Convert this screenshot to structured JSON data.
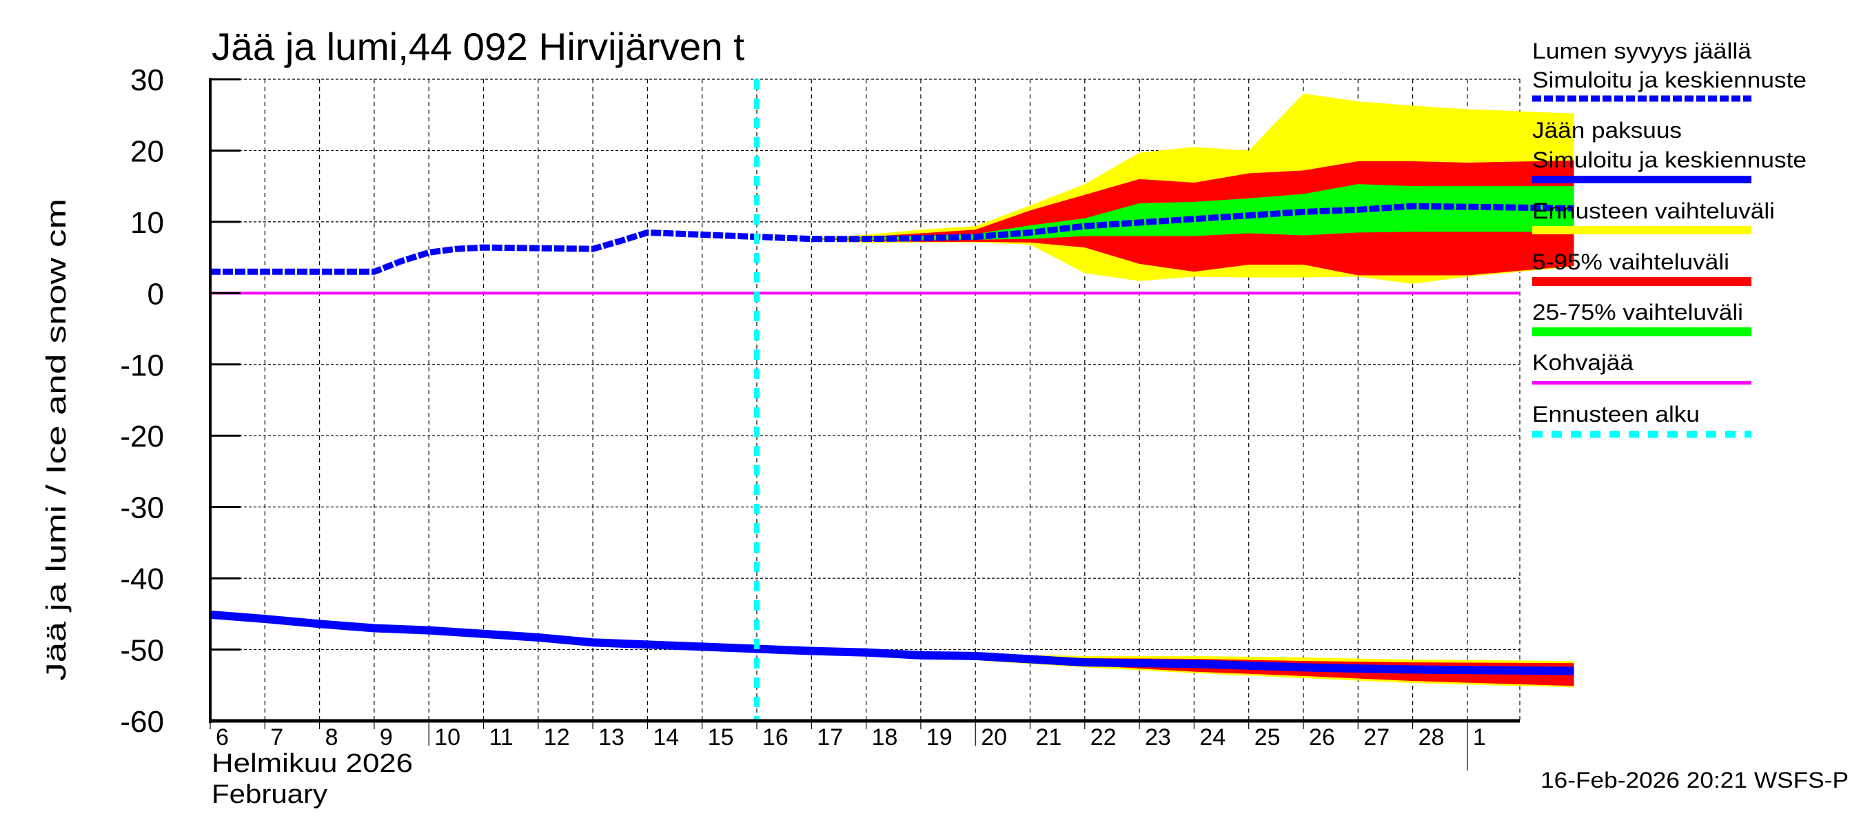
{
  "chart_data": {
    "type": "area",
    "title": "Jää ja lumi,44 092 Hirvijärven t",
    "ylabel": "Jää ja lumi / Ice and snow    cm",
    "xlabel_line1": "Helmikuu  2026",
    "xlabel_line2": "February",
    "timestamp": "16-Feb-2026 20:21 WSFS-P",
    "ylim": [
      -60,
      30
    ],
    "yticks": [
      30,
      20,
      10,
      0,
      -10,
      -20,
      -30,
      -40,
      -50,
      -60
    ],
    "x_range_days": [
      6,
      30.95
    ],
    "x_tick_days": [
      6,
      7,
      8,
      9,
      10,
      11,
      12,
      13,
      14,
      15,
      16,
      17,
      18,
      19,
      20,
      21,
      22,
      23,
      24,
      25,
      26,
      27,
      28,
      29
    ],
    "x_tick_labels": [
      "6",
      "7",
      "8",
      "9",
      "10",
      "11",
      "12",
      "13",
      "14",
      "15",
      "16",
      "17",
      "18",
      "19",
      "20",
      "21",
      "22",
      "23",
      "24",
      "25",
      "26",
      "27",
      "28",
      "1"
    ],
    "grid": true,
    "legend_position": "right",
    "forecast_start_day": 16,
    "colors": {
      "snow": "#0000ff",
      "ice": "#0000ff",
      "range_full": "#ffff00",
      "range_5_95": "#ff0000",
      "range_25_75": "#00ff00",
      "slush_ice": "#ff00ff",
      "forecast_start": "#00ffff"
    },
    "series": [
      {
        "name": "Lumen syvyys jäällä – Simuloitu ja keskiennuste",
        "style": "dashed",
        "x": [
          6,
          7,
          8,
          9,
          9.5,
          10,
          10.5,
          11,
          12,
          13,
          13.5,
          14,
          15,
          16,
          17,
          18,
          19,
          20,
          21,
          22,
          23,
          24,
          25,
          26,
          27,
          28,
          29,
          30.95
        ],
        "values": [
          3.0,
          3.0,
          3.0,
          3.0,
          4.5,
          5.7,
          6.2,
          6.4,
          6.3,
          6.2,
          7.3,
          8.5,
          8.2,
          7.9,
          7.6,
          7.6,
          7.7,
          7.9,
          8.5,
          9.4,
          9.9,
          10.4,
          10.9,
          11.4,
          11.7,
          12.2,
          12.1,
          11.9
        ]
      },
      {
        "name": "Jään paksuus – Simuloitu ja keskiennuste",
        "style": "solid",
        "x": [
          6,
          7,
          8,
          9,
          10,
          11,
          12,
          13,
          14,
          15,
          16,
          17,
          18,
          19,
          20,
          22,
          24,
          26,
          28,
          30.95
        ],
        "values": [
          -45.1,
          -45.7,
          -46.4,
          -47.0,
          -47.3,
          -47.8,
          -48.3,
          -49.0,
          -49.3,
          -49.6,
          -49.9,
          -50.2,
          -50.4,
          -50.8,
          -50.9,
          -51.8,
          -52.0,
          -52.5,
          -52.8,
          -53.0
        ]
      },
      {
        "name": "Kohvajää",
        "style": "solid",
        "x": [
          6,
          30.95
        ],
        "values": [
          0,
          0
        ]
      }
    ],
    "snow_bands": {
      "x": [
        16,
        17,
        18,
        19,
        20,
        21,
        22,
        23,
        24,
        25,
        26,
        27,
        28,
        29,
        30.95
      ],
      "full_max": [
        7.9,
        7.7,
        8.2,
        8.9,
        9.4,
        12.3,
        15.3,
        19.7,
        20.5,
        20.0,
        28.0,
        26.9,
        26.3,
        25.8,
        25.2
      ],
      "p95": [
        7.9,
        7.7,
        7.9,
        8.4,
        8.9,
        11.6,
        13.8,
        16.0,
        15.5,
        16.8,
        17.2,
        18.5,
        18.5,
        18.3,
        18.6
      ],
      "p75": [
        7.9,
        7.7,
        7.8,
        8.0,
        8.3,
        9.5,
        10.5,
        12.6,
        12.8,
        13.3,
        13.9,
        15.3,
        15.0,
        15.0,
        15.0
      ],
      "p25": [
        7.9,
        7.6,
        7.5,
        7.5,
        7.5,
        7.6,
        8.0,
        8.0,
        8.0,
        8.4,
        8.1,
        8.5,
        8.6,
        8.6,
        8.6
      ],
      "p5": [
        7.9,
        7.6,
        7.3,
        7.2,
        7.2,
        7.1,
        6.4,
        4.1,
        3.0,
        4.0,
        4.0,
        2.5,
        2.5,
        2.5,
        3.8
      ],
      "full_min": [
        7.9,
        7.6,
        7.0,
        7.1,
        7.1,
        6.8,
        2.8,
        1.7,
        2.3,
        2.2,
        2.2,
        2.3,
        1.3,
        2.3,
        3.7
      ]
    },
    "ice_bands": {
      "x": [
        16,
        18,
        20,
        22,
        24,
        26,
        28,
        30.95
      ],
      "full_max": [
        -49.9,
        -50.2,
        -50.6,
        -50.9,
        -50.9,
        -51.1,
        -51.4,
        -51.6
      ],
      "p95": [
        -49.9,
        -50.3,
        -50.7,
        -51.2,
        -51.3,
        -51.6,
        -51.8,
        -51.9
      ],
      "p75": [
        -49.9,
        -50.4,
        -50.9,
        -51.7,
        -51.9,
        -52.3,
        -52.6,
        -52.8
      ],
      "p25": [
        -49.9,
        -50.5,
        -51.0,
        -51.9,
        -52.2,
        -52.7,
        -53.0,
        -53.2
      ],
      "p5": [
        -49.9,
        -50.6,
        -51.3,
        -52.2,
        -53.1,
        -53.7,
        -54.4,
        -55.1
      ],
      "full_min": [
        -49.9,
        -50.7,
        -51.5,
        -52.5,
        -53.3,
        -54.0,
        -54.7,
        -55.3
      ]
    }
  },
  "legend": {
    "items": [
      {
        "line1": "Lumen syvyys jäällä",
        "line2": "Simuloitu ja keskiennuste",
        "swatch": "dashed-blue"
      },
      {
        "line1": "Jään paksuus",
        "line2": "Simuloitu ja keskiennuste",
        "swatch": "solid-blue"
      },
      {
        "line1": "Ennusteen vaihteluväli",
        "swatch": "yellow"
      },
      {
        "line1": "5-95% vaihteluväli",
        "swatch": "red"
      },
      {
        "line1": "25-75% vaihteluväli",
        "swatch": "green"
      },
      {
        "line1": "Kohvajää",
        "swatch": "magenta"
      },
      {
        "line1": "Ennusteen alku",
        "swatch": "dashed-cyan"
      }
    ]
  }
}
